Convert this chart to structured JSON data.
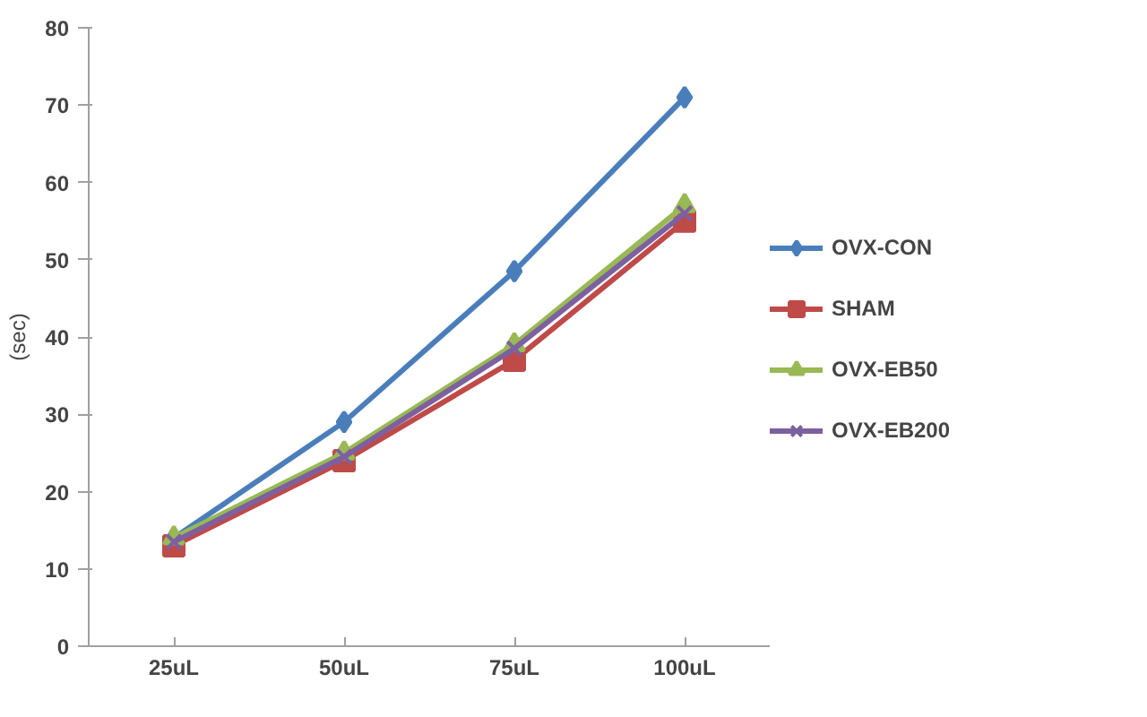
{
  "chart_data": {
    "type": "line",
    "ylabel": "(sec)",
    "categories": [
      "25uL",
      "50uL",
      "75uL",
      "100uL"
    ],
    "ylim": [
      0,
      80
    ],
    "yticks": [
      0,
      10,
      20,
      30,
      40,
      50,
      60,
      70,
      80
    ],
    "legend": "right",
    "series": [
      {
        "name": "OVX-CON",
        "color": "#4a7ebb",
        "marker": "diamond",
        "values": [
          14,
          29,
          48.5,
          71
        ]
      },
      {
        "name": "SHAM",
        "color": "#be4b48",
        "marker": "square",
        "values": [
          13,
          24,
          37,
          55
        ]
      },
      {
        "name": "OVX-EB50",
        "color": "#98b954",
        "marker": "triangle",
        "values": [
          14,
          25,
          39,
          57
        ]
      },
      {
        "name": "OVX-EB200",
        "color": "#7d60a0",
        "marker": "cross",
        "values": [
          13.5,
          24.5,
          38.5,
          56
        ]
      }
    ]
  }
}
